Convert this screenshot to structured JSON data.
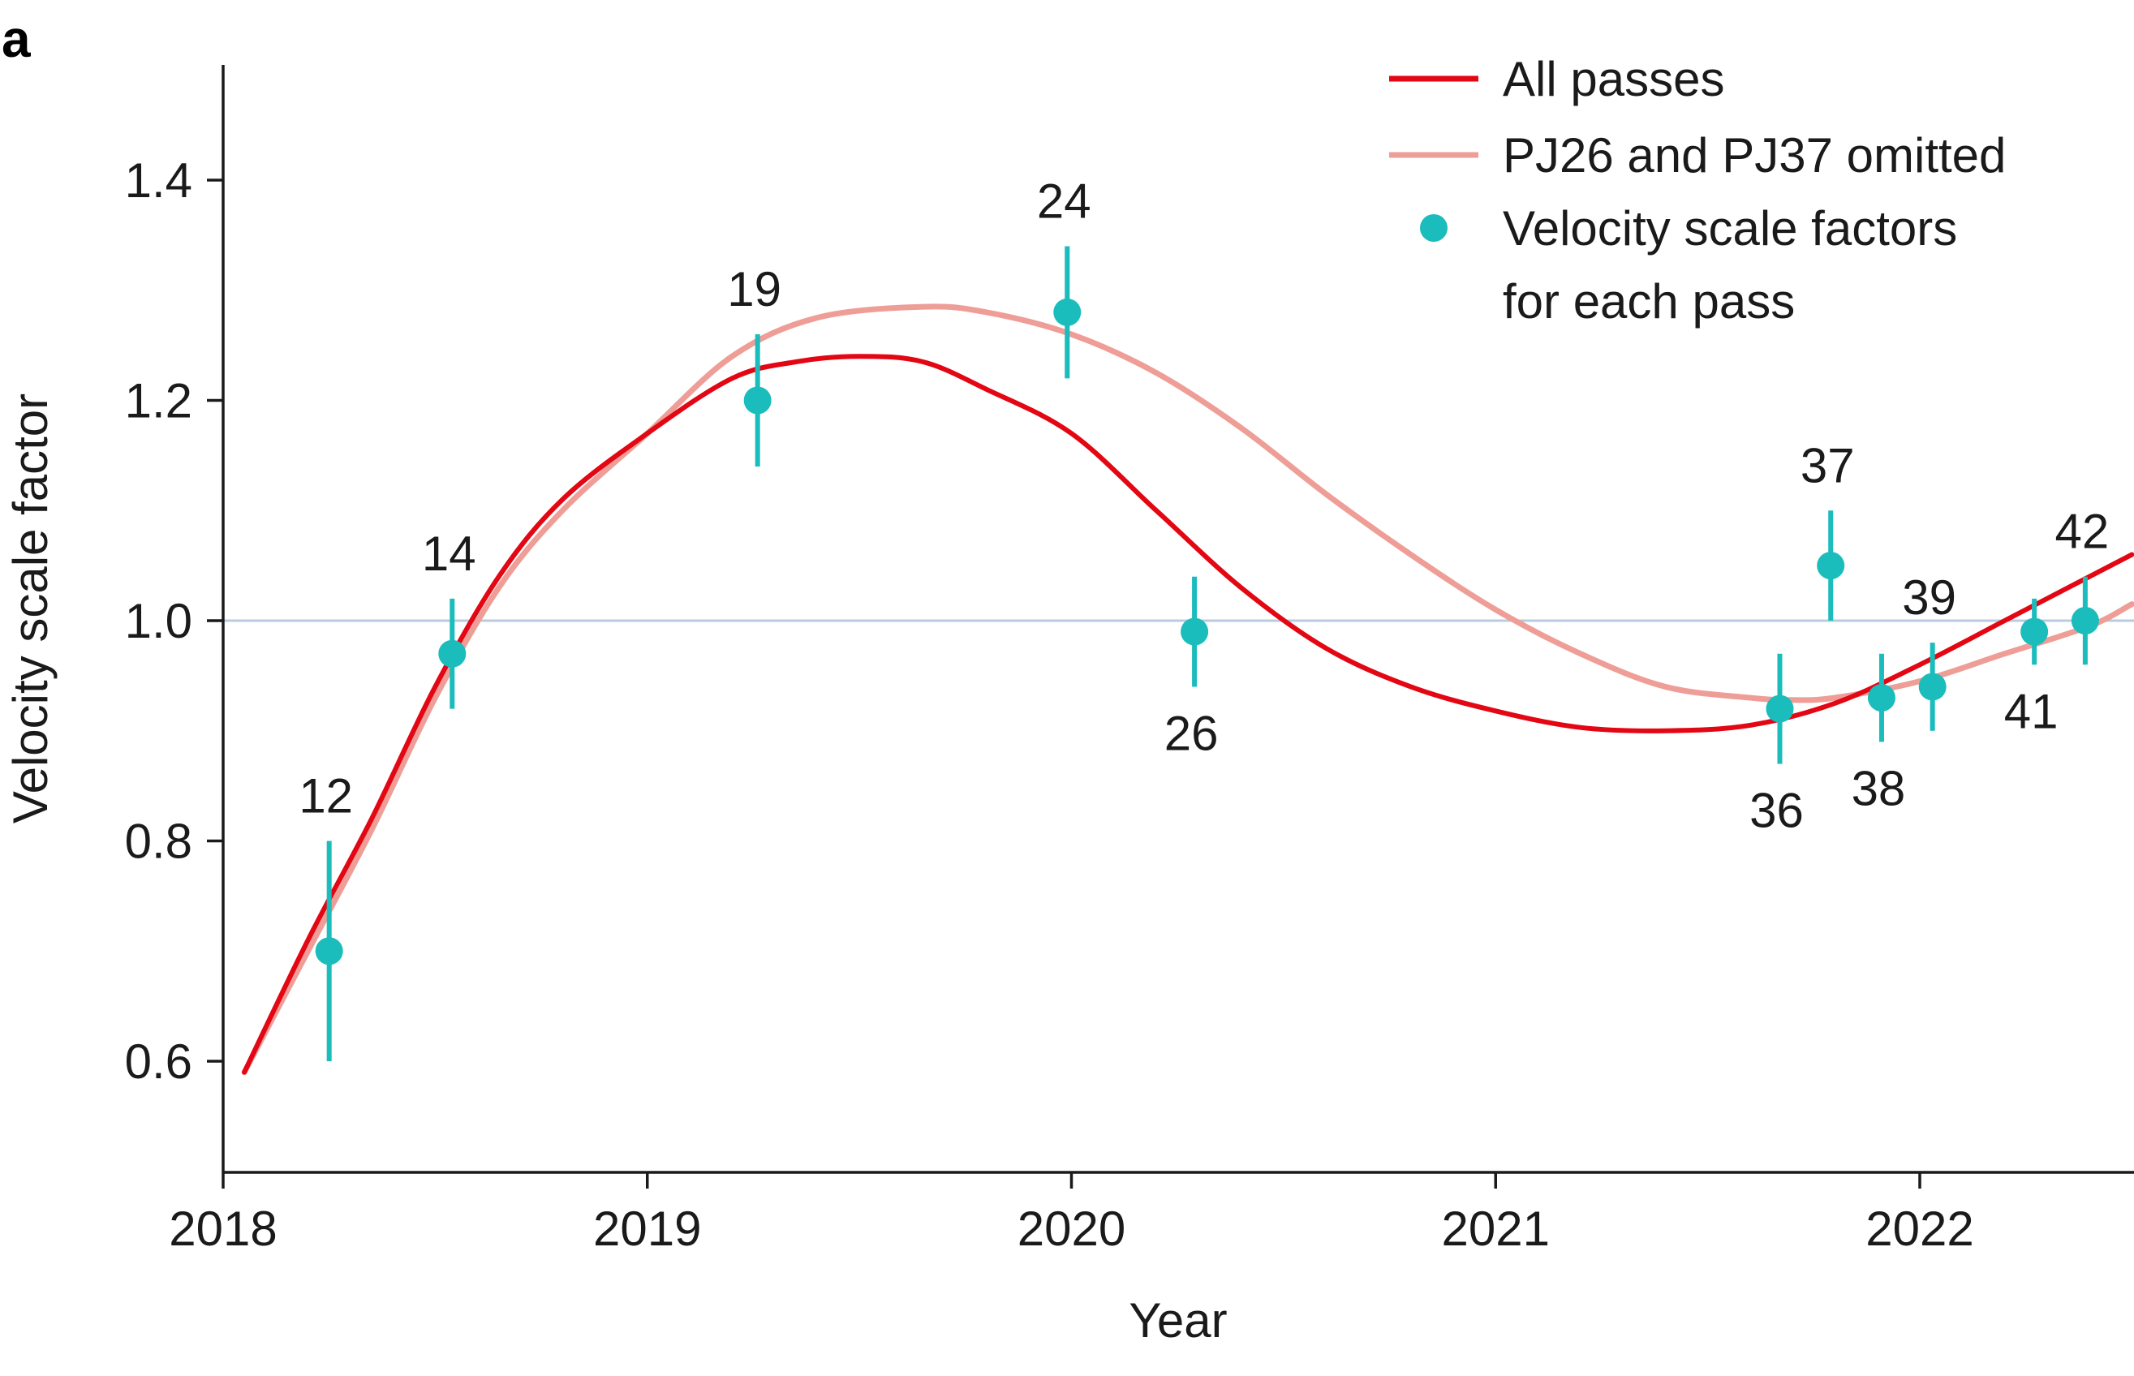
{
  "panel_label": "a",
  "chart_data": {
    "type": "scatter",
    "title": "",
    "xlabel": "Year",
    "ylabel": "Velocity scale factor",
    "xlim": [
      2018.0,
      2022.5
    ],
    "ylim": [
      0.5,
      1.5
    ],
    "x_ticks": [
      2018,
      2019,
      2020,
      2021,
      2022
    ],
    "x_tick_labels": [
      "2018",
      "2019",
      "2020",
      "2021",
      "2022"
    ],
    "y_ticks": [
      0.6,
      0.8,
      1.0,
      1.2,
      1.4
    ],
    "y_tick_labels": [
      "0.6",
      "0.8",
      "1.0",
      "1.2",
      "1.4"
    ],
    "reference_line": {
      "y": 1.0,
      "color": "#b9cbe0"
    },
    "grid": false,
    "legend_position": "top-right",
    "legend": [
      {
        "label": "All passes",
        "kind": "line",
        "color": "#e30613"
      },
      {
        "label": "PJ26 and PJ37 omitted",
        "kind": "line",
        "color": "#ee9e97"
      },
      {
        "label": "Velocity scale factors",
        "label_line2": "for each pass",
        "kind": "marker",
        "color": "#1bbcbc"
      }
    ],
    "series": [
      {
        "name": "All passes",
        "kind": "line",
        "color": "#e30613",
        "x": [
          2018.05,
          2018.2,
          2018.35,
          2018.5,
          2018.65,
          2018.8,
          2019.0,
          2019.2,
          2019.35,
          2019.5,
          2019.65,
          2019.8,
          2020.0,
          2020.2,
          2020.4,
          2020.6,
          2020.8,
          2021.0,
          2021.2,
          2021.4,
          2021.6,
          2021.8,
          2022.0,
          2022.2,
          2022.4,
          2022.5
        ],
        "y": [
          0.59,
          0.71,
          0.82,
          0.94,
          1.04,
          1.11,
          1.17,
          1.22,
          1.235,
          1.24,
          1.235,
          1.21,
          1.17,
          1.1,
          1.03,
          0.975,
          0.94,
          0.918,
          0.903,
          0.9,
          0.905,
          0.925,
          0.96,
          1.0,
          1.04,
          1.06
        ]
      },
      {
        "name": "PJ26 and PJ37 omitted",
        "kind": "line",
        "color": "#ee9e97",
        "x": [
          2018.05,
          2018.2,
          2018.35,
          2018.5,
          2018.65,
          2018.8,
          2019.0,
          2019.2,
          2019.4,
          2019.65,
          2019.8,
          2020.0,
          2020.2,
          2020.4,
          2020.6,
          2020.8,
          2021.0,
          2021.2,
          2021.4,
          2021.6,
          2021.7,
          2021.8,
          2022.0,
          2022.2,
          2022.4,
          2022.5
        ],
        "y": [
          0.59,
          0.7,
          0.81,
          0.93,
          1.03,
          1.1,
          1.17,
          1.24,
          1.275,
          1.285,
          1.28,
          1.26,
          1.225,
          1.175,
          1.115,
          1.06,
          1.01,
          0.97,
          0.94,
          0.93,
          0.928,
          0.93,
          0.945,
          0.97,
          0.995,
          1.015
        ]
      },
      {
        "name": "Velocity scale factors for each pass",
        "kind": "points",
        "color": "#1bbcbc",
        "points": [
          {
            "label": "12",
            "x": 2018.25,
            "y": 0.7,
            "err_low": 0.6,
            "err_high": 0.8,
            "label_pos": "above"
          },
          {
            "label": "14",
            "x": 2018.54,
            "y": 0.97,
            "err_low": 0.92,
            "err_high": 1.02,
            "label_pos": "above"
          },
          {
            "label": "19",
            "x": 2019.26,
            "y": 1.2,
            "err_low": 1.14,
            "err_high": 1.26,
            "label_pos": "above"
          },
          {
            "label": "24",
            "x": 2019.99,
            "y": 1.28,
            "err_low": 1.22,
            "err_high": 1.34,
            "label_pos": "above"
          },
          {
            "label": "26",
            "x": 2020.29,
            "y": 0.99,
            "err_low": 0.94,
            "err_high": 1.04,
            "label_pos": "below"
          },
          {
            "label": "36",
            "x": 2021.67,
            "y": 0.92,
            "err_low": 0.87,
            "err_high": 0.97,
            "label_pos": "below"
          },
          {
            "label": "37",
            "x": 2021.79,
            "y": 1.05,
            "err_low": 1.0,
            "err_high": 1.1,
            "label_pos": "above"
          },
          {
            "label": "38",
            "x": 2021.91,
            "y": 0.93,
            "err_low": 0.89,
            "err_high": 0.97,
            "label_pos": "below"
          },
          {
            "label": "39",
            "x": 2022.03,
            "y": 0.94,
            "err_low": 0.9,
            "err_high": 0.98,
            "label_pos": "above"
          },
          {
            "label": "41",
            "x": 2022.27,
            "y": 0.99,
            "err_low": 0.96,
            "err_high": 1.02,
            "label_pos": "below"
          },
          {
            "label": "42",
            "x": 2022.39,
            "y": 1.0,
            "err_low": 0.96,
            "err_high": 1.04,
            "label_pos": "above"
          }
        ]
      }
    ]
  }
}
